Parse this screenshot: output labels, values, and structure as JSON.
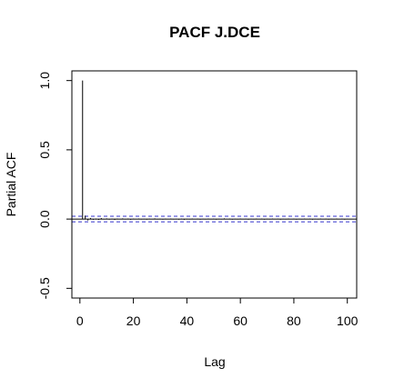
{
  "chart_data": {
    "type": "bar",
    "title": "PACF J.DCE",
    "xlabel": "Lag",
    "ylabel": "Partial ACF",
    "xlim": [
      -3,
      103.5
    ],
    "ylim": [
      -0.57,
      1.07
    ],
    "x_ticks": [
      0,
      20,
      40,
      60,
      80,
      100
    ],
    "y_ticks": [
      -0.5,
      0.0,
      0.5,
      1.0
    ],
    "x_tick_labels": [
      "0",
      "20",
      "40",
      "60",
      "80",
      "100"
    ],
    "y_tick_labels": [
      "-0.5",
      "0.0",
      "0.5",
      "1.0"
    ],
    "zero_line": 0,
    "confidence_bound": 0.02,
    "confidence_color": "#3333cc",
    "line_color": "#000000",
    "lags": [
      1,
      2,
      3,
      4,
      5,
      6,
      7,
      8,
      9,
      10,
      11,
      12,
      13,
      14,
      15,
      16,
      17,
      18,
      19,
      20,
      21,
      22,
      23,
      24,
      25,
      26,
      27,
      28,
      29,
      30,
      31,
      32,
      33,
      34,
      35,
      36,
      37,
      38,
      39,
      40,
      41,
      42,
      43,
      44,
      45,
      46,
      47,
      48,
      49,
      50,
      51,
      52,
      53,
      54,
      55,
      56,
      57,
      58,
      59,
      60,
      61,
      62,
      63,
      64,
      65,
      66,
      67,
      68,
      69,
      70,
      71,
      72,
      73,
      74,
      75,
      76,
      77,
      78,
      79,
      80,
      81,
      82,
      83,
      84,
      85,
      86,
      87,
      88,
      89,
      90,
      91,
      92,
      93,
      94,
      95,
      96,
      97,
      98,
      99,
      100
    ],
    "values": [
      1.0,
      0.025,
      -0.01,
      0.008,
      -0.005,
      0.004,
      -0.006,
      0.007,
      -0.003,
      0.005,
      -0.004,
      0.003,
      -0.006,
      0.004,
      -0.002,
      0.005,
      -0.003,
      0.004,
      -0.005,
      0.003,
      -0.002,
      0.004,
      -0.003,
      0.002,
      -0.004,
      0.003,
      -0.002,
      0.005,
      -0.003,
      0.002,
      -0.004,
      0.003,
      -0.002,
      0.004,
      -0.003,
      0.002,
      -0.004,
      0.003,
      -0.005,
      0.002,
      -0.003,
      0.004,
      -0.002,
      0.003,
      -0.004,
      0.002,
      -0.003,
      0.004,
      -0.002,
      0.003,
      -0.004,
      0.002,
      -0.003,
      0.005,
      -0.002,
      0.003,
      -0.004,
      0.002,
      -0.003,
      0.004,
      -0.002,
      0.003,
      -0.004,
      0.002,
      -0.003,
      0.004,
      -0.002,
      0.003,
      -0.004,
      0.002,
      -0.003,
      0.004,
      -0.002,
      0.003,
      -0.004,
      0.002,
      -0.003,
      0.004,
      -0.002,
      0.003,
      -0.004,
      0.002,
      -0.003,
      0.004,
      -0.002,
      0.003,
      -0.004,
      0.002,
      -0.003,
      0.004,
      -0.002,
      0.003,
      -0.004,
      0.002,
      -0.003,
      0.004,
      -0.002,
      0.003,
      -0.004,
      0.002
    ]
  }
}
